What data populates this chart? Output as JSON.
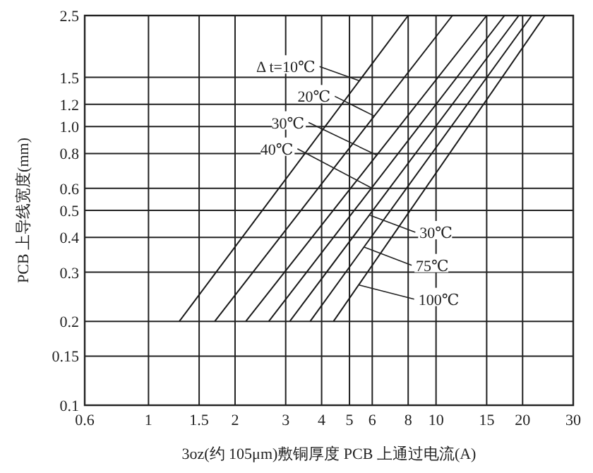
{
  "chart_data": {
    "type": "line",
    "xlabel": "3oz(约 105μm)敷铜厚度 PCB 上通过电流(A)",
    "ylabel": "PCB 上导线宽度(mm)",
    "log": "xy",
    "grid": true,
    "line_style": "solid",
    "xlim": [
      0.6,
      30
    ],
    "xticks": [
      0.6,
      1,
      1.5,
      2,
      3,
      4,
      5,
      6,
      8,
      10,
      15,
      20,
      30
    ],
    "ylim": [
      0.1,
      2.5
    ],
    "yticks": [
      0.1,
      0.15,
      0.2,
      0.3,
      0.4,
      0.5,
      0.6,
      0.8,
      {
        "value": 1,
        "label": "1.0"
      },
      1.2,
      1.5,
      2.5
    ],
    "series": [
      {
        "color": "#1a1a1a",
        "x": [
          1.28,
          8
        ],
        "values": [
          0.2,
          2.5
        ]
      },
      {
        "color": "#1a1a1a",
        "x": [
          1.7,
          11.4
        ],
        "values": [
          0.2,
          2.5
        ]
      },
      {
        "color": "#1a1a1a",
        "x": [
          2.18,
          15
        ],
        "values": [
          0.2,
          2.5
        ]
      },
      {
        "color": "#1a1a1a",
        "x": [
          2.62,
          17.3
        ],
        "values": [
          0.2,
          2.5
        ]
      },
      {
        "color": "#1a1a1a",
        "x": [
          3.1,
          19.4
        ],
        "values": [
          0.2,
          2.5
        ]
      },
      {
        "color": "#1a1a1a",
        "x": [
          3.65,
          21.5
        ],
        "values": [
          0.2,
          2.5
        ]
      },
      {
        "color": "#1a1a1a",
        "x": [
          4.4,
          23.9
        ],
        "values": [
          0.2,
          2.5
        ]
      }
    ],
    "annotations": [
      {
        "text": "Δ t=10℃",
        "x": 5.4,
        "y": 1.46
      },
      {
        "text": "20℃",
        "x": 6.1,
        "y": 1.09
      },
      {
        "text": "30℃",
        "x": 6.2,
        "y": 0.79
      },
      {
        "text": "40℃",
        "x": 6.0,
        "y": 0.6
      },
      {
        "text": "30℃",
        "x": 5.9,
        "y": 0.48
      },
      {
        "text": "75℃",
        "x": 5.6,
        "y": 0.37
      },
      {
        "text": "100℃",
        "x": 5.4,
        "y": 0.27
      }
    ]
  }
}
